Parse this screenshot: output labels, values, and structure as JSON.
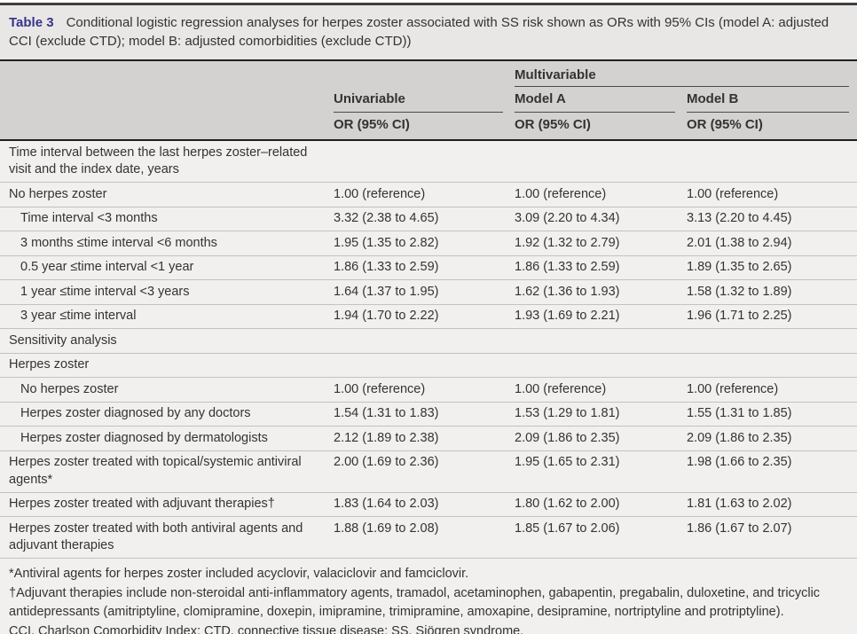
{
  "table": {
    "label": "Table 3",
    "caption": "Conditional logistic regression analyses for herpes zoster associated with SS risk shown as ORs with 95% CIs (model A: adjusted CCI (exclude CTD); model B: adjusted comorbidities (exclude CTD))",
    "group_header": "Multivariable",
    "columns": [
      {
        "label": "Univariable",
        "sub": "OR (95% CI)"
      },
      {
        "label": "Model A",
        "sub": "OR (95% CI)"
      },
      {
        "label": "Model B",
        "sub": "OR (95% CI)"
      }
    ],
    "rows": [
      {
        "label": "Time interval between the last herpes zoster–related visit and the index date, years",
        "indent": false,
        "values": [
          "",
          "",
          ""
        ]
      },
      {
        "label": "No herpes zoster",
        "indent": false,
        "values": [
          "1.00 (reference)",
          "1.00 (reference)",
          "1.00 (reference)"
        ]
      },
      {
        "label": "Time interval <3 months",
        "indent": true,
        "values": [
          "3.32 (2.38 to 4.65)",
          "3.09 (2.20 to 4.34)",
          "3.13 (2.20 to 4.45)"
        ]
      },
      {
        "label": "3 months ≤time interval <6 months",
        "indent": true,
        "values": [
          "1.95 (1.35 to 2.82)",
          "1.92 (1.32 to 2.79)",
          "2.01 (1.38 to 2.94)"
        ]
      },
      {
        "label": "0.5 year ≤time interval <1 year",
        "indent": true,
        "values": [
          "1.86 (1.33 to 2.59)",
          "1.86 (1.33 to 2.59)",
          "1.89 (1.35 to 2.65)"
        ]
      },
      {
        "label": "1 year ≤time interval <3 years",
        "indent": true,
        "values": [
          "1.64 (1.37 to 1.95)",
          "1.62 (1.36 to 1.93)",
          "1.58 (1.32 to 1.89)"
        ]
      },
      {
        "label": "3 year ≤time interval",
        "indent": true,
        "values": [
          "1.94 (1.70 to 2.22)",
          "1.93 (1.69 to 2.21)",
          "1.96 (1.71 to 2.25)"
        ]
      },
      {
        "label": "Sensitivity analysis",
        "indent": false,
        "values": [
          "",
          "",
          ""
        ]
      },
      {
        "label": "Herpes zoster",
        "indent": false,
        "values": [
          "",
          "",
          ""
        ]
      },
      {
        "label": "No herpes zoster",
        "indent": true,
        "values": [
          "1.00 (reference)",
          "1.00 (reference)",
          "1.00 (reference)"
        ]
      },
      {
        "label": "Herpes zoster diagnosed by any doctors",
        "indent": true,
        "values": [
          "1.54 (1.31 to 1.83)",
          "1.53 (1.29 to 1.81)",
          "1.55 (1.31 to 1.85)"
        ]
      },
      {
        "label": "Herpes zoster diagnosed by dermatologists",
        "indent": true,
        "values": [
          "2.12 (1.89 to 2.38)",
          "2.09 (1.86 to 2.35)",
          "2.09 (1.86 to 2.35)"
        ]
      },
      {
        "label": "Herpes zoster treated with topical/systemic antiviral agents*",
        "indent": false,
        "values": [
          "2.00 (1.69 to 2.36)",
          "1.95 (1.65 to 2.31)",
          "1.98 (1.66 to 2.35)"
        ]
      },
      {
        "label": "Herpes zoster treated with adjuvant therapies†",
        "indent": false,
        "values": [
          "1.83 (1.64 to 2.03)",
          "1.80 (1.62 to 2.00)",
          "1.81 (1.63 to 2.02)"
        ]
      },
      {
        "label": "Herpes zoster treated with both antiviral agents and adjuvant therapies",
        "indent": false,
        "values": [
          "1.88 (1.69 to 2.08)",
          "1.85 (1.67 to 2.06)",
          "1.86 (1.67 to 2.07)"
        ]
      }
    ],
    "footnotes": [
      "*Antiviral agents for herpes zoster included acyclovir, valaciclovir and famciclovir.",
      "†Adjuvant therapies include non-steroidal anti-inflammatory agents, tramadol, acetaminophen, gabapentin, pregabalin, duloxetine, and tricyclic antidepressants (amitriptyline, clomipramine, doxepin, imipramine, trimipramine, amoxapine, desipramine, nortriptyline and protriptyline).",
      "CCI, Charlson Comorbidity Index; CTD, connective tissue disease; SS, Sjögren syndrome."
    ],
    "colors": {
      "accent_label": "#37338c",
      "title_bg": "#e8e7e5",
      "header_bg": "#d3d2d0",
      "body_bg": "#f1f0ee",
      "rule_dark": "#1f1f1f",
      "rule_light": "#c3c2c0",
      "text": "#333333"
    }
  }
}
